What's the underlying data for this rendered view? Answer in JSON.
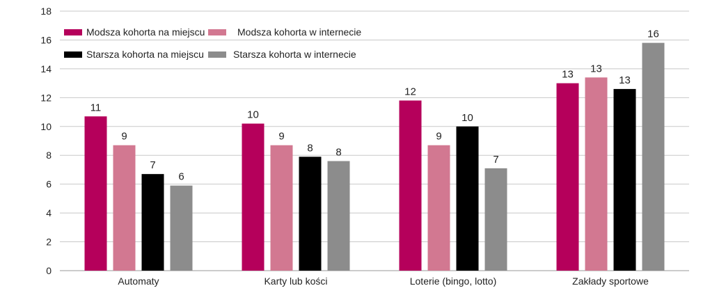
{
  "chart_data": {
    "type": "bar",
    "categories": [
      "Automaty",
      "Karty lub kości",
      "Loterie (bingo, lotto)",
      "Zakłady sportowe"
    ],
    "series": [
      {
        "name": "Modsza kohorta na miejscu",
        "color": "#b5005b",
        "values": [
          10.7,
          10.2,
          11.8,
          13.0
        ],
        "labels": [
          "11",
          "10",
          "12",
          "13"
        ]
      },
      {
        "name": "Modsza kohorta w internecie",
        "color": "#d27891",
        "values": [
          8.7,
          8.7,
          8.7,
          13.4
        ],
        "labels": [
          "9",
          "9",
          "9",
          "13"
        ]
      },
      {
        "name": "Starsza kohorta na miejscu",
        "color": "#000000",
        "values": [
          6.7,
          7.9,
          10.0,
          12.6
        ],
        "labels": [
          "7",
          "8",
          "10",
          "13"
        ]
      },
      {
        "name": "Starsza kohorta w internecie",
        "color": "#8c8c8c",
        "values": [
          5.9,
          7.6,
          7.1,
          15.8
        ],
        "labels": [
          "6",
          "8",
          "7",
          "16"
        ]
      }
    ],
    "yticks": [
      "0",
      "2",
      "4",
      "6",
      "8",
      "10",
      "12",
      "14",
      "16",
      "18"
    ],
    "ylim": [
      0,
      18
    ],
    "grid": true,
    "legend_position": "top-left"
  }
}
